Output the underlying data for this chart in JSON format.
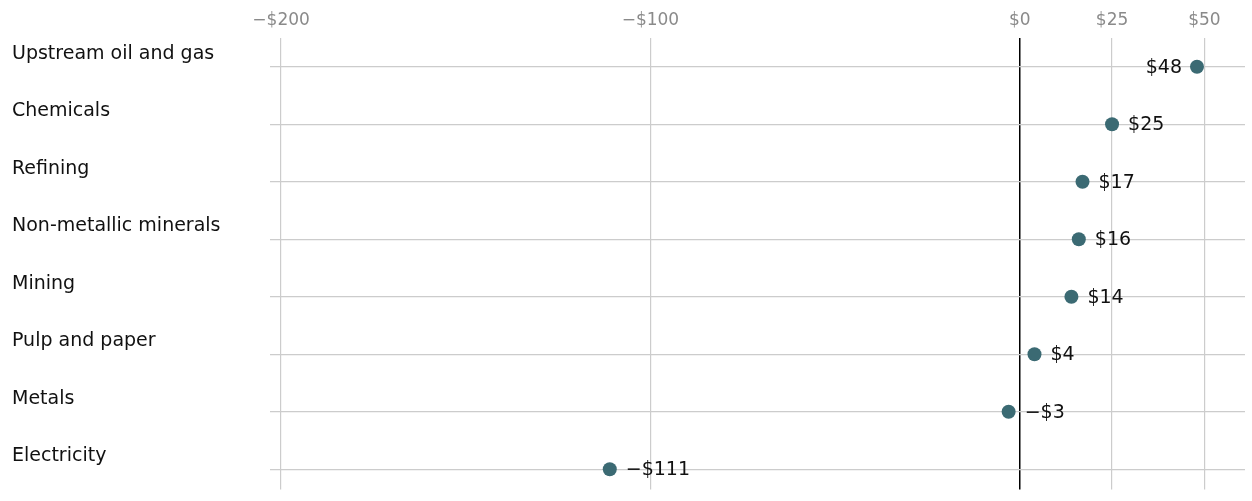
{
  "chart_data": {
    "type": "scatter",
    "orientation": "horizontal",
    "categories": [
      "Upstream oil and gas",
      "Chemicals",
      "Refining",
      "Non-metallic minerals",
      "Mining",
      "Pulp and paper",
      "Metals",
      "Electricity"
    ],
    "values": [
      48,
      25,
      17,
      16,
      14,
      4,
      -3,
      -111
    ],
    "value_labels": [
      "$48",
      "$25",
      "$17",
      "$16",
      "$14",
      "$4",
      "−$3",
      "−$111"
    ],
    "color": "#3b6a73",
    "xlim": [
      -203,
      61
    ],
    "xticks": [
      {
        "value": -200,
        "label": "−$200"
      },
      {
        "value": -100,
        "label": "−$100"
      },
      {
        "value": 0,
        "label": "$0"
      },
      {
        "value": 25,
        "label": "$25"
      },
      {
        "value": 50,
        "label": "$50"
      }
    ],
    "grid": true,
    "marker": "circle"
  }
}
